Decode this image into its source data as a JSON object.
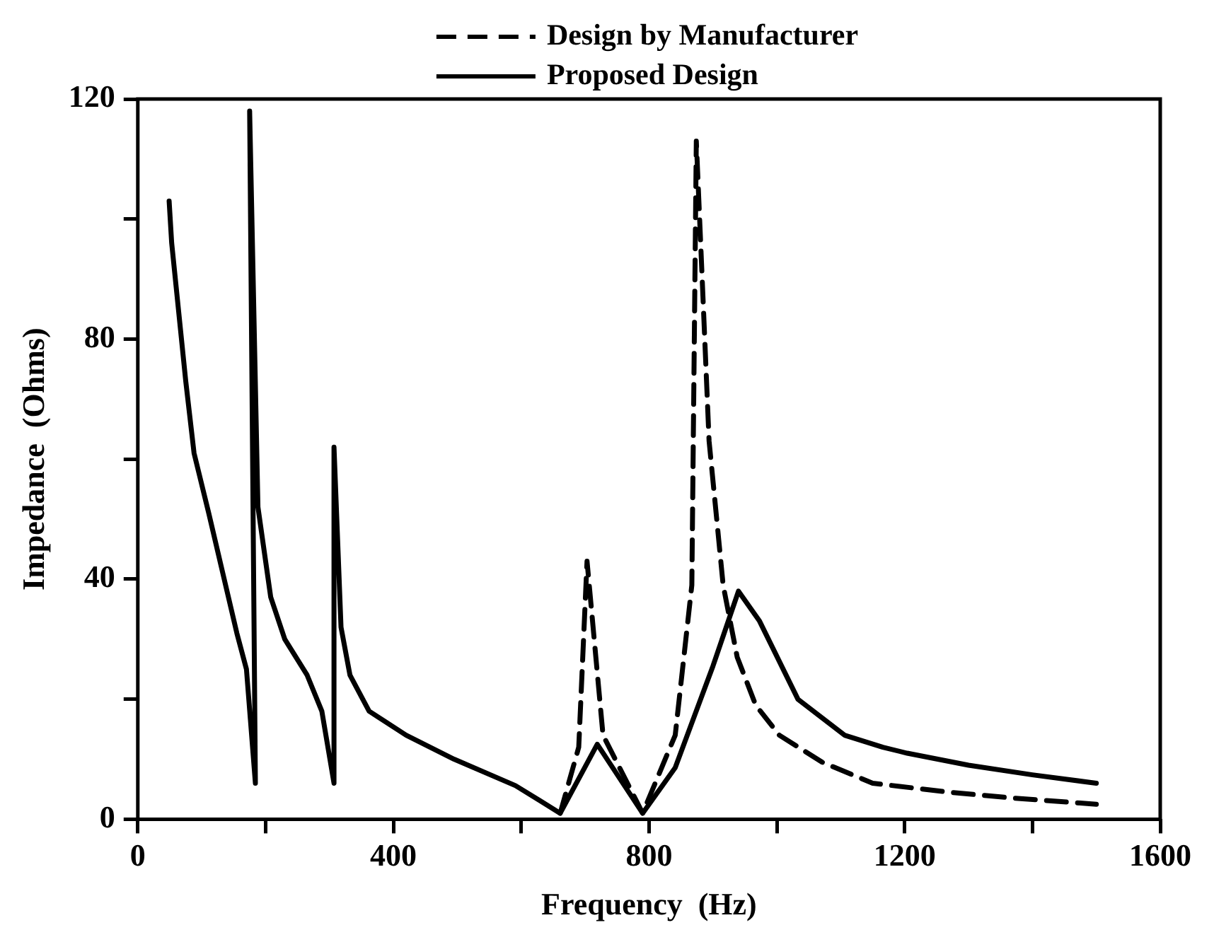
{
  "chart_data": {
    "type": "line",
    "xlabel": "Frequency  (Hz)",
    "ylabel": "Impedance  (Ohms)",
    "xlim": [
      0,
      1600
    ],
    "ylim": [
      0,
      120
    ],
    "xticks": [
      0,
      {
        "value": 200,
        "label": null
      },
      400,
      {
        "value": 600,
        "label": null
      },
      800,
      {
        "value": 1000,
        "label": null
      },
      1200,
      {
        "value": 1400,
        "label": null
      },
      1600
    ],
    "yticks": [
      0,
      {
        "value": 20,
        "label": null
      },
      40,
      {
        "value": 60,
        "label": null
      },
      80,
      {
        "value": 100,
        "label": null
      },
      120
    ],
    "grid": false,
    "legend": "top right",
    "marker": "none",
    "series": [
      {
        "name": "Design by Manufacturer",
        "color": "#000000",
        "line_style": "dashed",
        "x": [
          661,
          690,
          703,
          728,
          790,
          841,
          867,
          874,
          894,
          916,
          938,
          967,
          1004,
          1071,
          1150,
          1270,
          1372,
          1500
        ],
        "values": [
          1,
          12,
          43,
          14,
          1,
          14,
          39,
          113,
          63,
          39,
          27,
          19,
          14,
          9.5,
          6,
          4.5,
          3.5,
          2.5
        ]
      },
      {
        "name": "Proposed Design",
        "color": "#000000",
        "line_style": "solid",
        "x": [
          49,
          53,
          75,
          88,
          111,
          133,
          155,
          170,
          184,
          175,
          188,
          208,
          230,
          265,
          288,
          307,
          307,
          318,
          332,
          362,
          420,
          495,
          591,
          661,
          719,
          790,
          841,
          900,
          940,
          973,
          1033,
          1106,
          1166,
          1204,
          1300,
          1400,
          1500
        ],
        "values": [
          103,
          96,
          73,
          61,
          51,
          41,
          31,
          25,
          6,
          118,
          52,
          37,
          30,
          24,
          18,
          6,
          62,
          32,
          24,
          18,
          14,
          10,
          5.6,
          1,
          12.5,
          1,
          8.6,
          25.5,
          38,
          33,
          20,
          14,
          12,
          11,
          9,
          7.4,
          6
        ]
      }
    ]
  }
}
